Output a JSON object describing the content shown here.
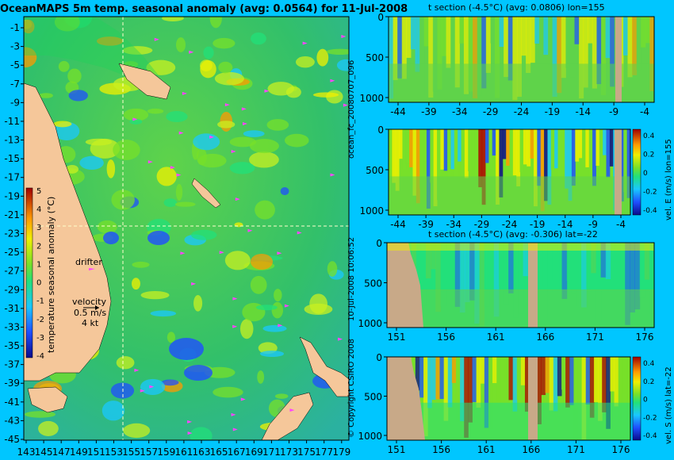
{
  "title": "OceanMAPS 5m temp. seasonal anomaly (avg: 0.0564) for 11-Jul-2008",
  "run_label": "ocean_fc_20080707_096",
  "timestamp": "10-Jul-2008 10:06:52",
  "copyright": "© Copyright CSIRO 2008",
  "colors": {
    "background": "#00c6ff",
    "land": "#c8a988",
    "land_map": "#f5c79a",
    "drifter": "#ff44ff"
  },
  "chart_data": [
    {
      "type": "heatmap",
      "name": "map",
      "title": "OceanMAPS 5m temp. seasonal anomaly (avg: 0.0564) for 11-Jul-2008",
      "ylim": [
        -45,
        0
      ],
      "xlim": [
        143,
        180
      ],
      "y_ticks": [
        "-1",
        "-3",
        "-5",
        "-7",
        "-9",
        "-11",
        "-13",
        "-15",
        "-17",
        "-19",
        "-21",
        "-23",
        "-25",
        "-27",
        "-29",
        "-31",
        "-33",
        "-35",
        "-37",
        "-39",
        "-41",
        "-43",
        "-45"
      ],
      "x_ticks": [
        "143",
        "145",
        "147",
        "149",
        "151",
        "153",
        "155",
        "157",
        "159",
        "161",
        "163",
        "165",
        "167",
        "169",
        "171",
        "173",
        "175",
        "177",
        "179"
      ],
      "section_lon": 155,
      "section_lat": -22,
      "colorbar": {
        "label": "temperature seasonal anomaly (°C)",
        "ticks": [
          "5",
          "4",
          "3",
          "2",
          "1",
          "0",
          "-1",
          "-2",
          "-3",
          "-4"
        ],
        "range": [
          -4,
          5
        ]
      },
      "legend": {
        "drifter_label": "drifter",
        "velocity_label": "velocity",
        "velocity_value": "0.5 m/s",
        "velocity_speed": "4 kt"
      }
    },
    {
      "type": "heatmap",
      "name": "t-section-lon",
      "title": "t section (-4.5°C) (avg: 0.0806) lon=155",
      "x_ticks": [
        "-44",
        "-39",
        "-34",
        "-29",
        "-24",
        "-19",
        "-14",
        "-9",
        "-4"
      ],
      "y_ticks": [
        "0",
        "500",
        "1000"
      ],
      "xlim": [
        -45,
        0
      ],
      "ylim": [
        1000,
        0
      ]
    },
    {
      "type": "heatmap",
      "name": "vel-e-section",
      "x_ticks": [
        "-44",
        "-39",
        "-34",
        "-29",
        "-24",
        "-19",
        "-14",
        "-9",
        "-4"
      ],
      "y_ticks": [
        "0",
        "500",
        "1000"
      ],
      "xlim": [
        -45,
        0
      ],
      "ylim": [
        1000,
        0
      ],
      "colorbar": {
        "label": "vel. E (m/s) lon=155",
        "ticks": [
          "0.4",
          "0.2",
          "0",
          "-0.2",
          "-0.4"
        ],
        "range": [
          -0.4,
          0.4
        ]
      }
    },
    {
      "type": "heatmap",
      "name": "t-section-lat",
      "title": "t section (-4.5°C) (avg: -0.306) lat=-22",
      "x_ticks": [
        "151",
        "156",
        "161",
        "166",
        "171",
        "176"
      ],
      "y_ticks": [
        "0",
        "500",
        "1000"
      ],
      "xlim": [
        150,
        180
      ],
      "ylim": [
        1000,
        0
      ]
    },
    {
      "type": "heatmap",
      "name": "vel-s-section",
      "x_ticks": [
        "151",
        "156",
        "161",
        "166",
        "171",
        "176"
      ],
      "y_ticks": [
        "0",
        "500",
        "1000"
      ],
      "xlim": [
        150,
        180
      ],
      "ylim": [
        1000,
        0
      ],
      "colorbar": {
        "label": "vel. S (m/s) lat=-22",
        "ticks": [
          "0.4",
          "0.2",
          "0",
          "-0.2",
          "-0.4"
        ],
        "range": [
          -0.4,
          0.4
        ]
      }
    }
  ]
}
